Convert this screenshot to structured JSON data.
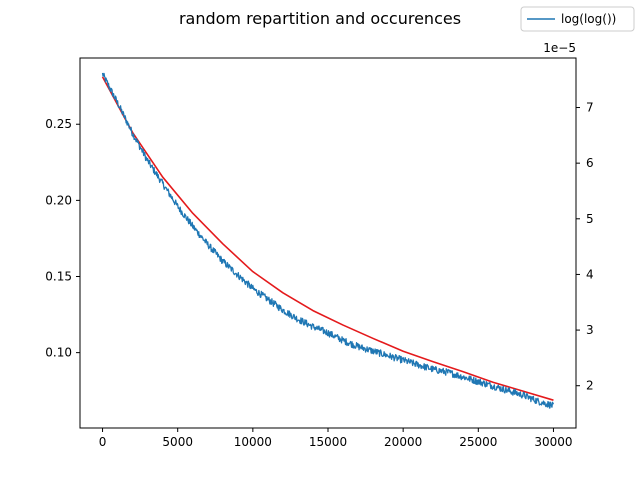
{
  "chart_data": {
    "type": "line",
    "title": "random repartition and occurences",
    "xlabel": "",
    "ylabel_left": "",
    "ylabel_right": "",
    "xlim": [
      -1500,
      31500
    ],
    "ylim_left": [
      0.0505,
      0.2935
    ],
    "ylim_right": [
      1.24e-05,
      7.89e-05
    ],
    "right_axis_offset": "1e−5",
    "grid": false,
    "legend_position": "top-right (outside plot)",
    "x_ticks": [
      0,
      5000,
      10000,
      15000,
      20000,
      25000,
      30000
    ],
    "x_tick_labels": [
      "0",
      "5000",
      "10000",
      "15000",
      "20000",
      "25000",
      "30000"
    ],
    "y_left_ticks": [
      0.1,
      0.15,
      0.2,
      0.25
    ],
    "y_left_tick_labels": [
      "0.10",
      "0.15",
      "0.20",
      "0.25"
    ],
    "y_right_ticks": [
      2,
      3,
      4,
      5,
      6,
      7
    ],
    "y_right_tick_labels": [
      "2",
      "3",
      "4",
      "5",
      "6",
      "7"
    ],
    "series": [
      {
        "name": "log(log())",
        "axis": "left",
        "color": "#1f77b4",
        "noisy": true,
        "x": [
          0,
          1000,
          2000,
          3000,
          4000,
          5000,
          6000,
          7000,
          8000,
          9000,
          10000,
          11000,
          12000,
          13000,
          14000,
          15000,
          16000,
          17000,
          18000,
          19000,
          20000,
          21000,
          22000,
          23000,
          24000,
          25000,
          26000,
          27000,
          28000,
          29000,
          30000
        ],
        "values": [
          0.283,
          0.264,
          0.244,
          0.226,
          0.211,
          0.196,
          0.183,
          0.171,
          0.16,
          0.151,
          0.142,
          0.135,
          0.128,
          0.122,
          0.117,
          0.113,
          0.108,
          0.104,
          0.101,
          0.098,
          0.095,
          0.092,
          0.089,
          0.087,
          0.084,
          0.081,
          0.078,
          0.075,
          0.072,
          0.068,
          0.065
        ]
      },
      {
        "name": "",
        "axis": "right",
        "color": "#e41a1c",
        "noisy": false,
        "x": [
          0,
          2000,
          4000,
          6000,
          8000,
          10000,
          12000,
          14000,
          16000,
          18000,
          20000,
          22000,
          24000,
          26000,
          28000,
          30000
        ],
        "values": [
          7.55e-05,
          6.55e-05,
          5.75e-05,
          5.1e-05,
          4.55e-05,
          4.05e-05,
          3.67e-05,
          3.35e-05,
          3.09e-05,
          2.85e-05,
          2.62e-05,
          2.43e-05,
          2.25e-05,
          2.06e-05,
          1.9e-05,
          1.74e-05
        ]
      }
    ]
  }
}
